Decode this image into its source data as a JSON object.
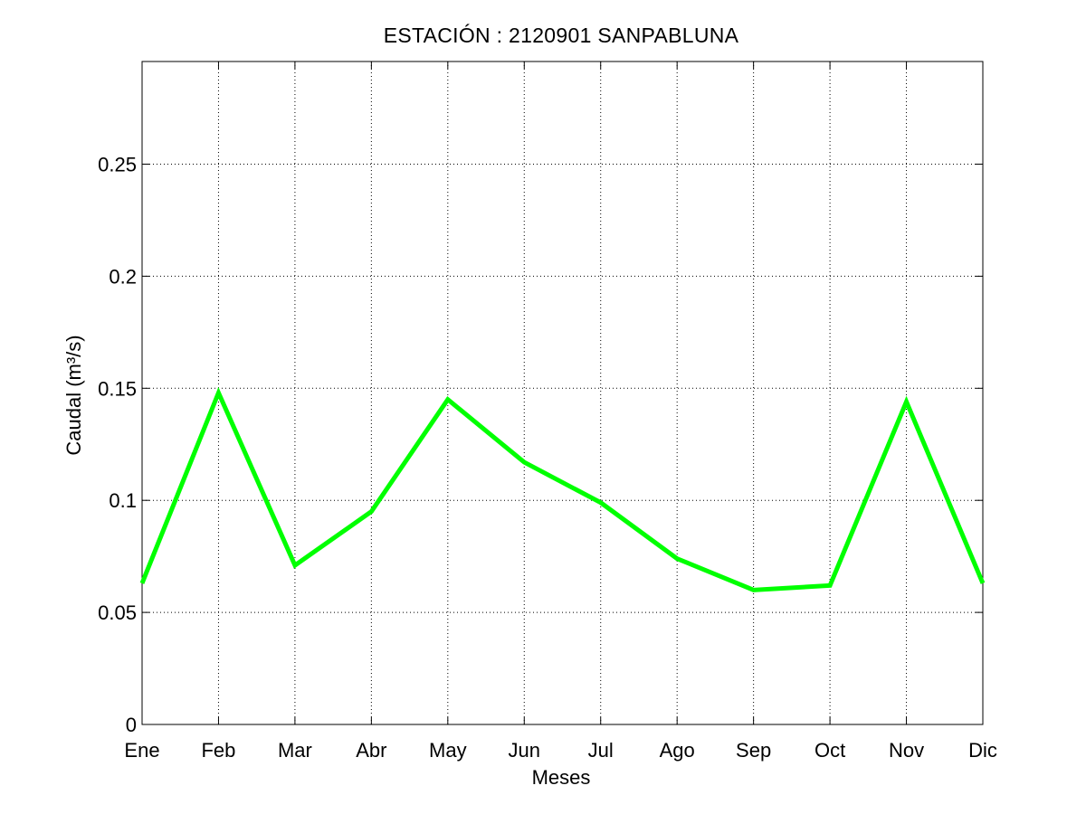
{
  "chart_data": {
    "type": "line",
    "title": "ESTACIÓN :  2120901  SANPABLUNA",
    "xlabel": "Meses",
    "ylabel": "Caudal (m³/s)",
    "categories": [
      "Ene",
      "Feb",
      "Mar",
      "Abr",
      "May",
      "Jun",
      "Jul",
      "Ago",
      "Sep",
      "Oct",
      "Nov",
      "Dic"
    ],
    "series": [
      {
        "values": [
          0.063,
          0.148,
          0.071,
          0.095,
          0.145,
          0.117,
          0.099,
          0.074,
          0.06,
          0.062,
          0.144,
          0.063
        ],
        "color": "#00ff00"
      }
    ],
    "ylim": [
      0,
      0.2958
    ],
    "yticks": [
      0,
      0.05,
      0.1,
      0.15,
      0.2,
      0.25
    ],
    "ytick_labels": [
      "0",
      "0.05",
      "0.1",
      "0.15",
      "0.2",
      "0.25"
    ],
    "grid": true
  }
}
